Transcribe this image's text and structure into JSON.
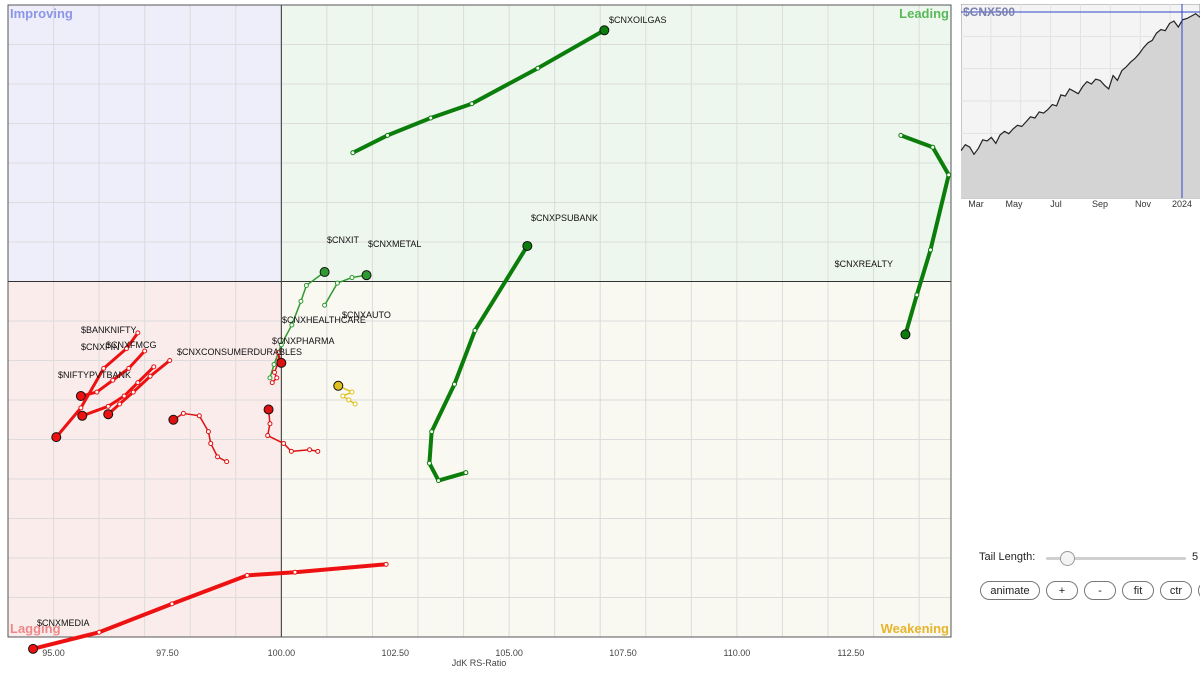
{
  "chart_data": {
    "type": "scatter",
    "subtype": "relative-rotation-graph",
    "xlabel": "JdK RS-Ratio",
    "xlim": [
      94.0,
      114.7
    ],
    "ylim": [
      95.5,
      103.5
    ],
    "x_ticks": [
      "95.00",
      "97.50",
      "100.00",
      "102.50",
      "105.00",
      "107.50",
      "110.00",
      "112.50"
    ],
    "quadrants": {
      "top_left": "Improving",
      "top_right": "Leading",
      "bottom_left": "Lagging",
      "bottom_right": "Weakening"
    },
    "quadrant_colors": {
      "improving": "#eeeefa",
      "leading": "#eef7ee",
      "lagging": "#fbecec",
      "weakening": "#f9f8f1"
    },
    "series": [
      {
        "name": "$CNXOILGAS",
        "color": "#0a7d0a",
        "width": 4,
        "points": [
          [
            101.57,
            101.63
          ],
          [
            102.33,
            101.85
          ],
          [
            103.28,
            102.07
          ],
          [
            104.18,
            102.25
          ],
          [
            105.63,
            102.7
          ],
          [
            107.09,
            103.18
          ]
        ]
      },
      {
        "name": "$CNXREALTY",
        "color": "#0a7d0a",
        "width": 4,
        "points": [
          [
            113.6,
            101.85
          ],
          [
            114.3,
            101.7
          ],
          [
            114.65,
            101.35
          ],
          [
            114.25,
            100.4
          ],
          [
            113.95,
            99.83
          ],
          [
            113.7,
            99.33
          ]
        ]
      },
      {
        "name": "$CNXPSUBANK",
        "color": "#0a7d0a",
        "width": 4,
        "points": [
          [
            104.05,
            97.58
          ],
          [
            103.45,
            97.48
          ],
          [
            103.25,
            97.7
          ],
          [
            103.3,
            98.1
          ],
          [
            103.8,
            98.7
          ],
          [
            104.25,
            99.38
          ],
          [
            105.4,
            100.45
          ]
        ]
      },
      {
        "name": "$CNXIT",
        "color": "#2f9a2f",
        "width": 1.5,
        "points": [
          [
            99.75,
            98.78
          ],
          [
            99.84,
            98.95
          ],
          [
            100.0,
            99.2
          ],
          [
            100.23,
            99.45
          ],
          [
            100.43,
            99.75
          ],
          [
            100.55,
            99.95
          ],
          [
            100.95,
            100.12
          ]
        ]
      },
      {
        "name": "$CNXMETAL",
        "color": "#2f9a2f",
        "width": 1.5,
        "points": [
          [
            100.95,
            99.7
          ],
          [
            101.23,
            99.98
          ],
          [
            101.55,
            100.05
          ],
          [
            101.87,
            100.08
          ]
        ]
      },
      {
        "name": "$CNXAUTO",
        "color": "#e0c020",
        "width": 1.5,
        "points": [
          [
            101.62,
            98.45
          ],
          [
            101.48,
            98.5
          ],
          [
            101.35,
            98.55
          ],
          [
            101.55,
            98.6
          ],
          [
            101.25,
            98.68
          ]
        ]
      },
      {
        "name": "$CNXHEALTHCARE",
        "color": "#dd1111",
        "width": 1.5,
        "points": [
          [
            99.8,
            98.72
          ],
          [
            99.9,
            98.78
          ],
          [
            99.85,
            98.85
          ],
          [
            99.95,
            99.0
          ],
          [
            99.93,
            99.1
          ],
          [
            100.0,
            98.97
          ]
        ]
      },
      {
        "name": "$CNXPHARMA",
        "color": "#dd1111",
        "width": 1.5,
        "points": [
          [
            100.8,
            97.85
          ],
          [
            100.62,
            97.87
          ],
          [
            100.22,
            97.85
          ],
          [
            100.05,
            97.95
          ],
          [
            99.7,
            98.05
          ],
          [
            99.75,
            98.2
          ],
          [
            99.72,
            98.38
          ]
        ]
      },
      {
        "name": "$CNXCONSUMERDURABLES",
        "color": "#dd1111",
        "width": 1.5,
        "points": [
          [
            98.8,
            97.72
          ],
          [
            98.6,
            97.78
          ],
          [
            98.45,
            97.95
          ],
          [
            98.4,
            98.1
          ],
          [
            98.2,
            98.3
          ],
          [
            97.85,
            98.33
          ],
          [
            97.63,
            98.25
          ]
        ]
      },
      {
        "name": "$CNXFMCG",
        "color": "#ee1111",
        "width": 3,
        "points": [
          [
            97.55,
            99.0
          ],
          [
            97.12,
            98.8
          ],
          [
            96.75,
            98.6
          ],
          [
            96.45,
            98.45
          ],
          [
            96.2,
            98.32
          ]
        ]
      },
      {
        "name": "$CNXFIN",
        "color": "#ee1111",
        "width": 3,
        "points": [
          [
            97.2,
            98.92
          ],
          [
            96.85,
            98.72
          ],
          [
            96.55,
            98.55
          ],
          [
            96.2,
            98.42
          ],
          [
            95.63,
            98.3
          ]
        ]
      },
      {
        "name": "$BANKNIFTY",
        "color": "#ee1111",
        "width": 3,
        "points": [
          [
            97.0,
            99.12
          ],
          [
            96.65,
            98.9
          ],
          [
            96.3,
            98.75
          ],
          [
            95.95,
            98.6
          ],
          [
            95.6,
            98.55
          ]
        ]
      },
      {
        "name": "$NIFTYPVTBANK",
        "color": "#ee1111",
        "width": 3,
        "points": [
          [
            96.85,
            99.35
          ],
          [
            96.6,
            99.15
          ],
          [
            96.1,
            98.9
          ],
          [
            95.6,
            98.4
          ],
          [
            95.06,
            98.03
          ]
        ]
      },
      {
        "name": "$CNXMEDIA",
        "color": "#ee1111",
        "width": 4,
        "points": [
          [
            102.3,
            96.42
          ],
          [
            100.3,
            96.32
          ],
          [
            99.25,
            96.28
          ],
          [
            97.6,
            95.92
          ],
          [
            96.0,
            95.56
          ],
          [
            94.55,
            95.35
          ]
        ]
      }
    ]
  },
  "labels": {
    "oilgas": "$CNXOILGAS",
    "realty": "$CNXREALTY",
    "psubank": "$CNXPSUBANK",
    "it": "$CNXIT",
    "metal": "$CNXMETAL",
    "auto": "$CNXAUTO",
    "healthcare": "$CNXHEALTHCARE",
    "pharma": "$CNXPHARMA",
    "condur": "$CNXCONSUMERDURABLES",
    "fmcg": "$CNXFMCG",
    "fin": "$CNXFIN",
    "banknifty": "$BANKNIFTY",
    "pvtbank": "$NIFTYPVTBANK",
    "media": "$CNXMEDIA"
  },
  "mini_chart": {
    "title": "$CNX500",
    "months": [
      "Mar",
      "May",
      "Jul",
      "Sep",
      "Nov",
      "2024"
    ],
    "values": [
      39,
      44,
      42,
      36,
      41,
      48,
      47,
      50,
      45,
      52,
      55,
      53,
      57,
      60,
      59,
      63,
      67,
      66,
      71,
      70,
      73,
      77,
      76,
      85,
      84,
      90,
      88,
      86,
      92,
      96,
      94,
      98,
      97,
      93,
      90,
      101,
      97,
      105,
      108,
      112,
      115,
      119,
      124,
      128,
      130,
      136,
      139,
      138,
      144,
      146,
      141,
      147,
      148,
      150,
      152,
      149
    ]
  },
  "controls": {
    "tail_label": "Tail Length:",
    "tail_value": "5",
    "tail_fraction": 0.15,
    "buttons": {
      "animate": "animate",
      "plus": "+",
      "minus": "-",
      "fit": "fit",
      "ctr": "ctr",
      "grid": "#"
    }
  }
}
